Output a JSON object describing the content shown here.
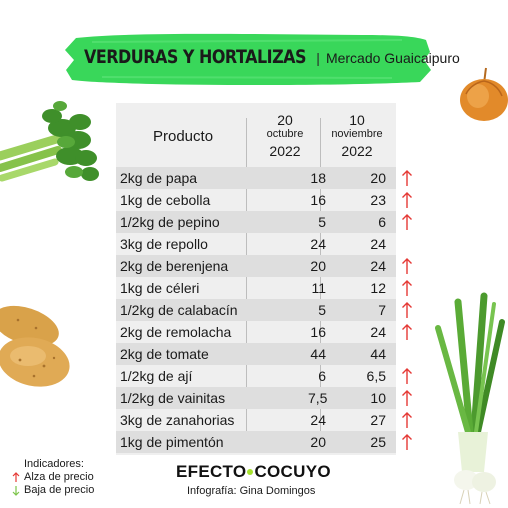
{
  "header": {
    "title": "VERDURAS Y HORTALIZAS",
    "separator": "|",
    "subtitle": "Mercado Guaicaipuro"
  },
  "table": {
    "product_header": "Producto",
    "date1": {
      "day": "20",
      "month": "octubre",
      "year": "2022"
    },
    "date2": {
      "day": "10",
      "month": "noviembre",
      "year": "2022"
    },
    "rows": [
      {
        "product": "2kg de papa",
        "oct": "18",
        "nov": "20",
        "trend": "up"
      },
      {
        "product": "1kg de cebolla",
        "oct": "16",
        "nov": "23",
        "trend": "up"
      },
      {
        "product": "1/2kg de pepino",
        "oct": "5",
        "nov": "6",
        "trend": "up"
      },
      {
        "product": "3kg de repollo",
        "oct": "24",
        "nov": "24",
        "trend": "none"
      },
      {
        "product": "2kg de berenjena",
        "oct": "20",
        "nov": "24",
        "trend": "up"
      },
      {
        "product": "1kg de céleri",
        "oct": "11",
        "nov": "12",
        "trend": "up"
      },
      {
        "product": "1/2kg de calabacín",
        "oct": "5",
        "nov": "7",
        "trend": "up"
      },
      {
        "product": "2kg de remolacha",
        "oct": "16",
        "nov": "24",
        "trend": "up"
      },
      {
        "product": "2kg de tomate",
        "oct": "44",
        "nov": "44",
        "trend": "none"
      },
      {
        "product": "1/2kg de ají",
        "oct": "6",
        "nov": "6,5",
        "trend": "up"
      },
      {
        "product": "1/2kg de vainitas",
        "oct": "7,5",
        "nov": "10",
        "trend": "up"
      },
      {
        "product": "3kg de zanahorias",
        "oct": "24",
        "nov": "27",
        "trend": "up"
      },
      {
        "product": "1kg de pimentón",
        "oct": "20",
        "nov": "25",
        "trend": "up"
      }
    ]
  },
  "legend": {
    "title": "Indicadores:",
    "up_label": "Alza de precio",
    "down_label": "Baja de precio",
    "up_icon": "red-up-arrow-icon",
    "down_icon": "green-down-arrow-icon"
  },
  "brand": {
    "name_left": "EFECTO",
    "name_right": "COCUYO",
    "credit": "Infografía: Gina Domingos"
  },
  "colors": {
    "brush_green": "#39d75a",
    "up_arrow": "#e53935",
    "down_arrow": "#7cc44a",
    "table_bg": "#efefef",
    "row_shade": "#dedede",
    "brand_dot": "#a6e22e"
  }
}
